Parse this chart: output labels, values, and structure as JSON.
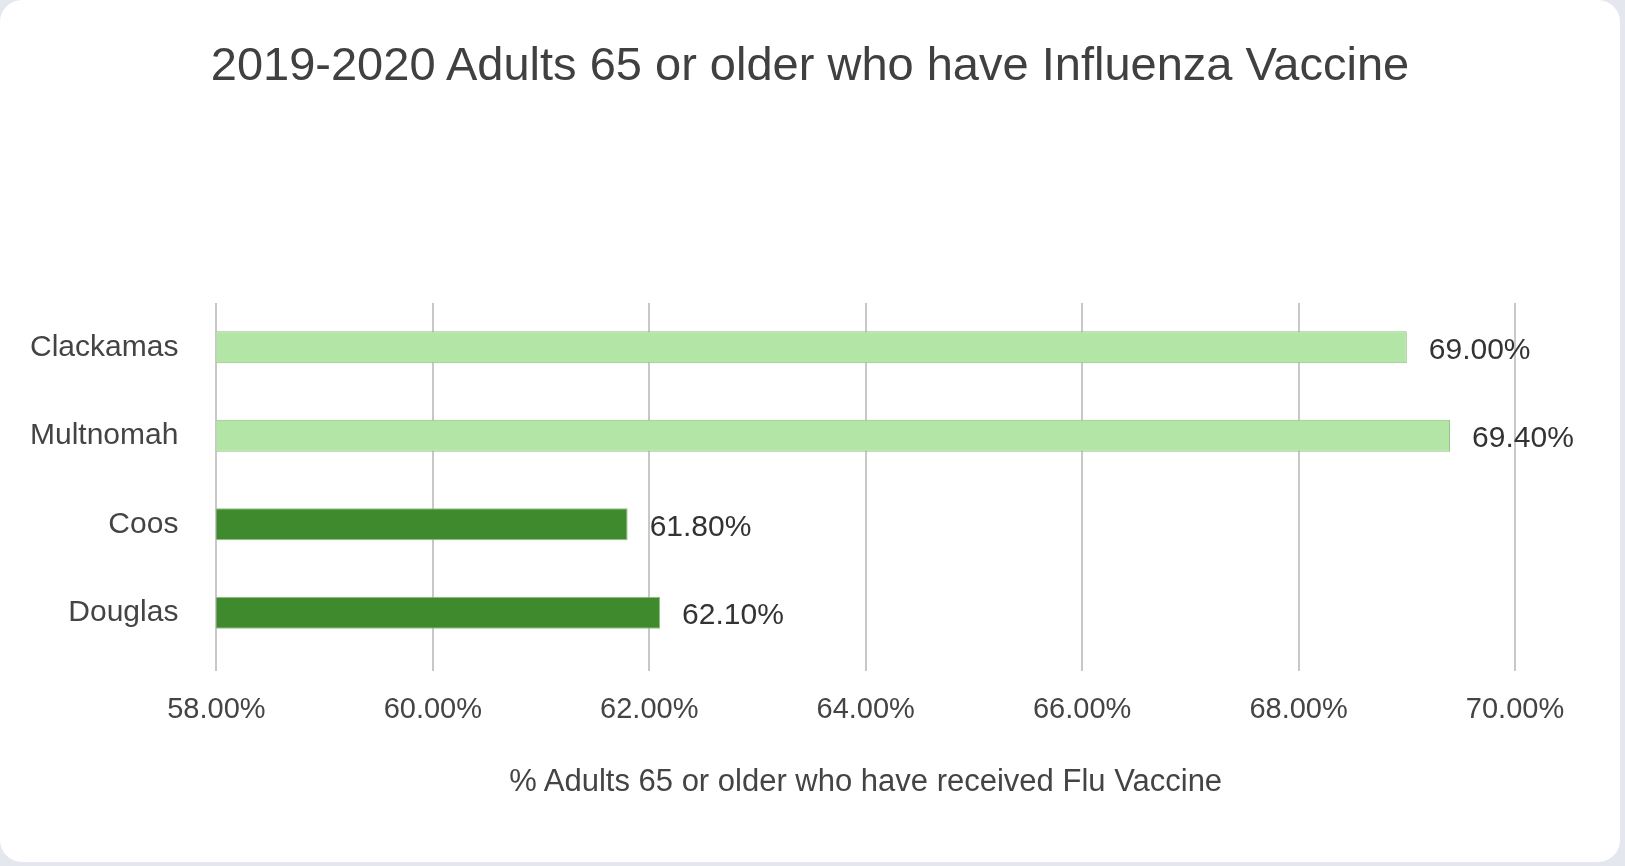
{
  "chart_data": {
    "type": "bar",
    "orientation": "horizontal",
    "title": "2019-2020  Adults 65 or older who have Influenza Vaccine",
    "xlabel": "% Adults 65 or older who have received Flu Vaccine",
    "categories": [
      "Clackamas",
      "Multnomah",
      "Coos",
      "Douglas"
    ],
    "values": [
      69.0,
      69.4,
      61.8,
      62.1
    ],
    "colors": [
      "#b3e6a6",
      "#b3e6a6",
      "#3f8a2c",
      "#3f8a2c"
    ],
    "value_labels": [
      "69.00%",
      "69.40%",
      "61.80%",
      "62.10%"
    ],
    "xlim": [
      58,
      70
    ],
    "xticks": [
      {
        "value": 58,
        "label": "58.00%"
      },
      {
        "value": 60,
        "label": "60.00%"
      },
      {
        "value": 62,
        "label": "62.00%"
      },
      {
        "value": 64,
        "label": "64.00%"
      },
      {
        "value": 66,
        "label": "66.00%"
      },
      {
        "value": 68,
        "label": "68.00%"
      },
      {
        "value": 70,
        "label": "70.00%"
      }
    ],
    "grid": "x",
    "legend": false
  }
}
